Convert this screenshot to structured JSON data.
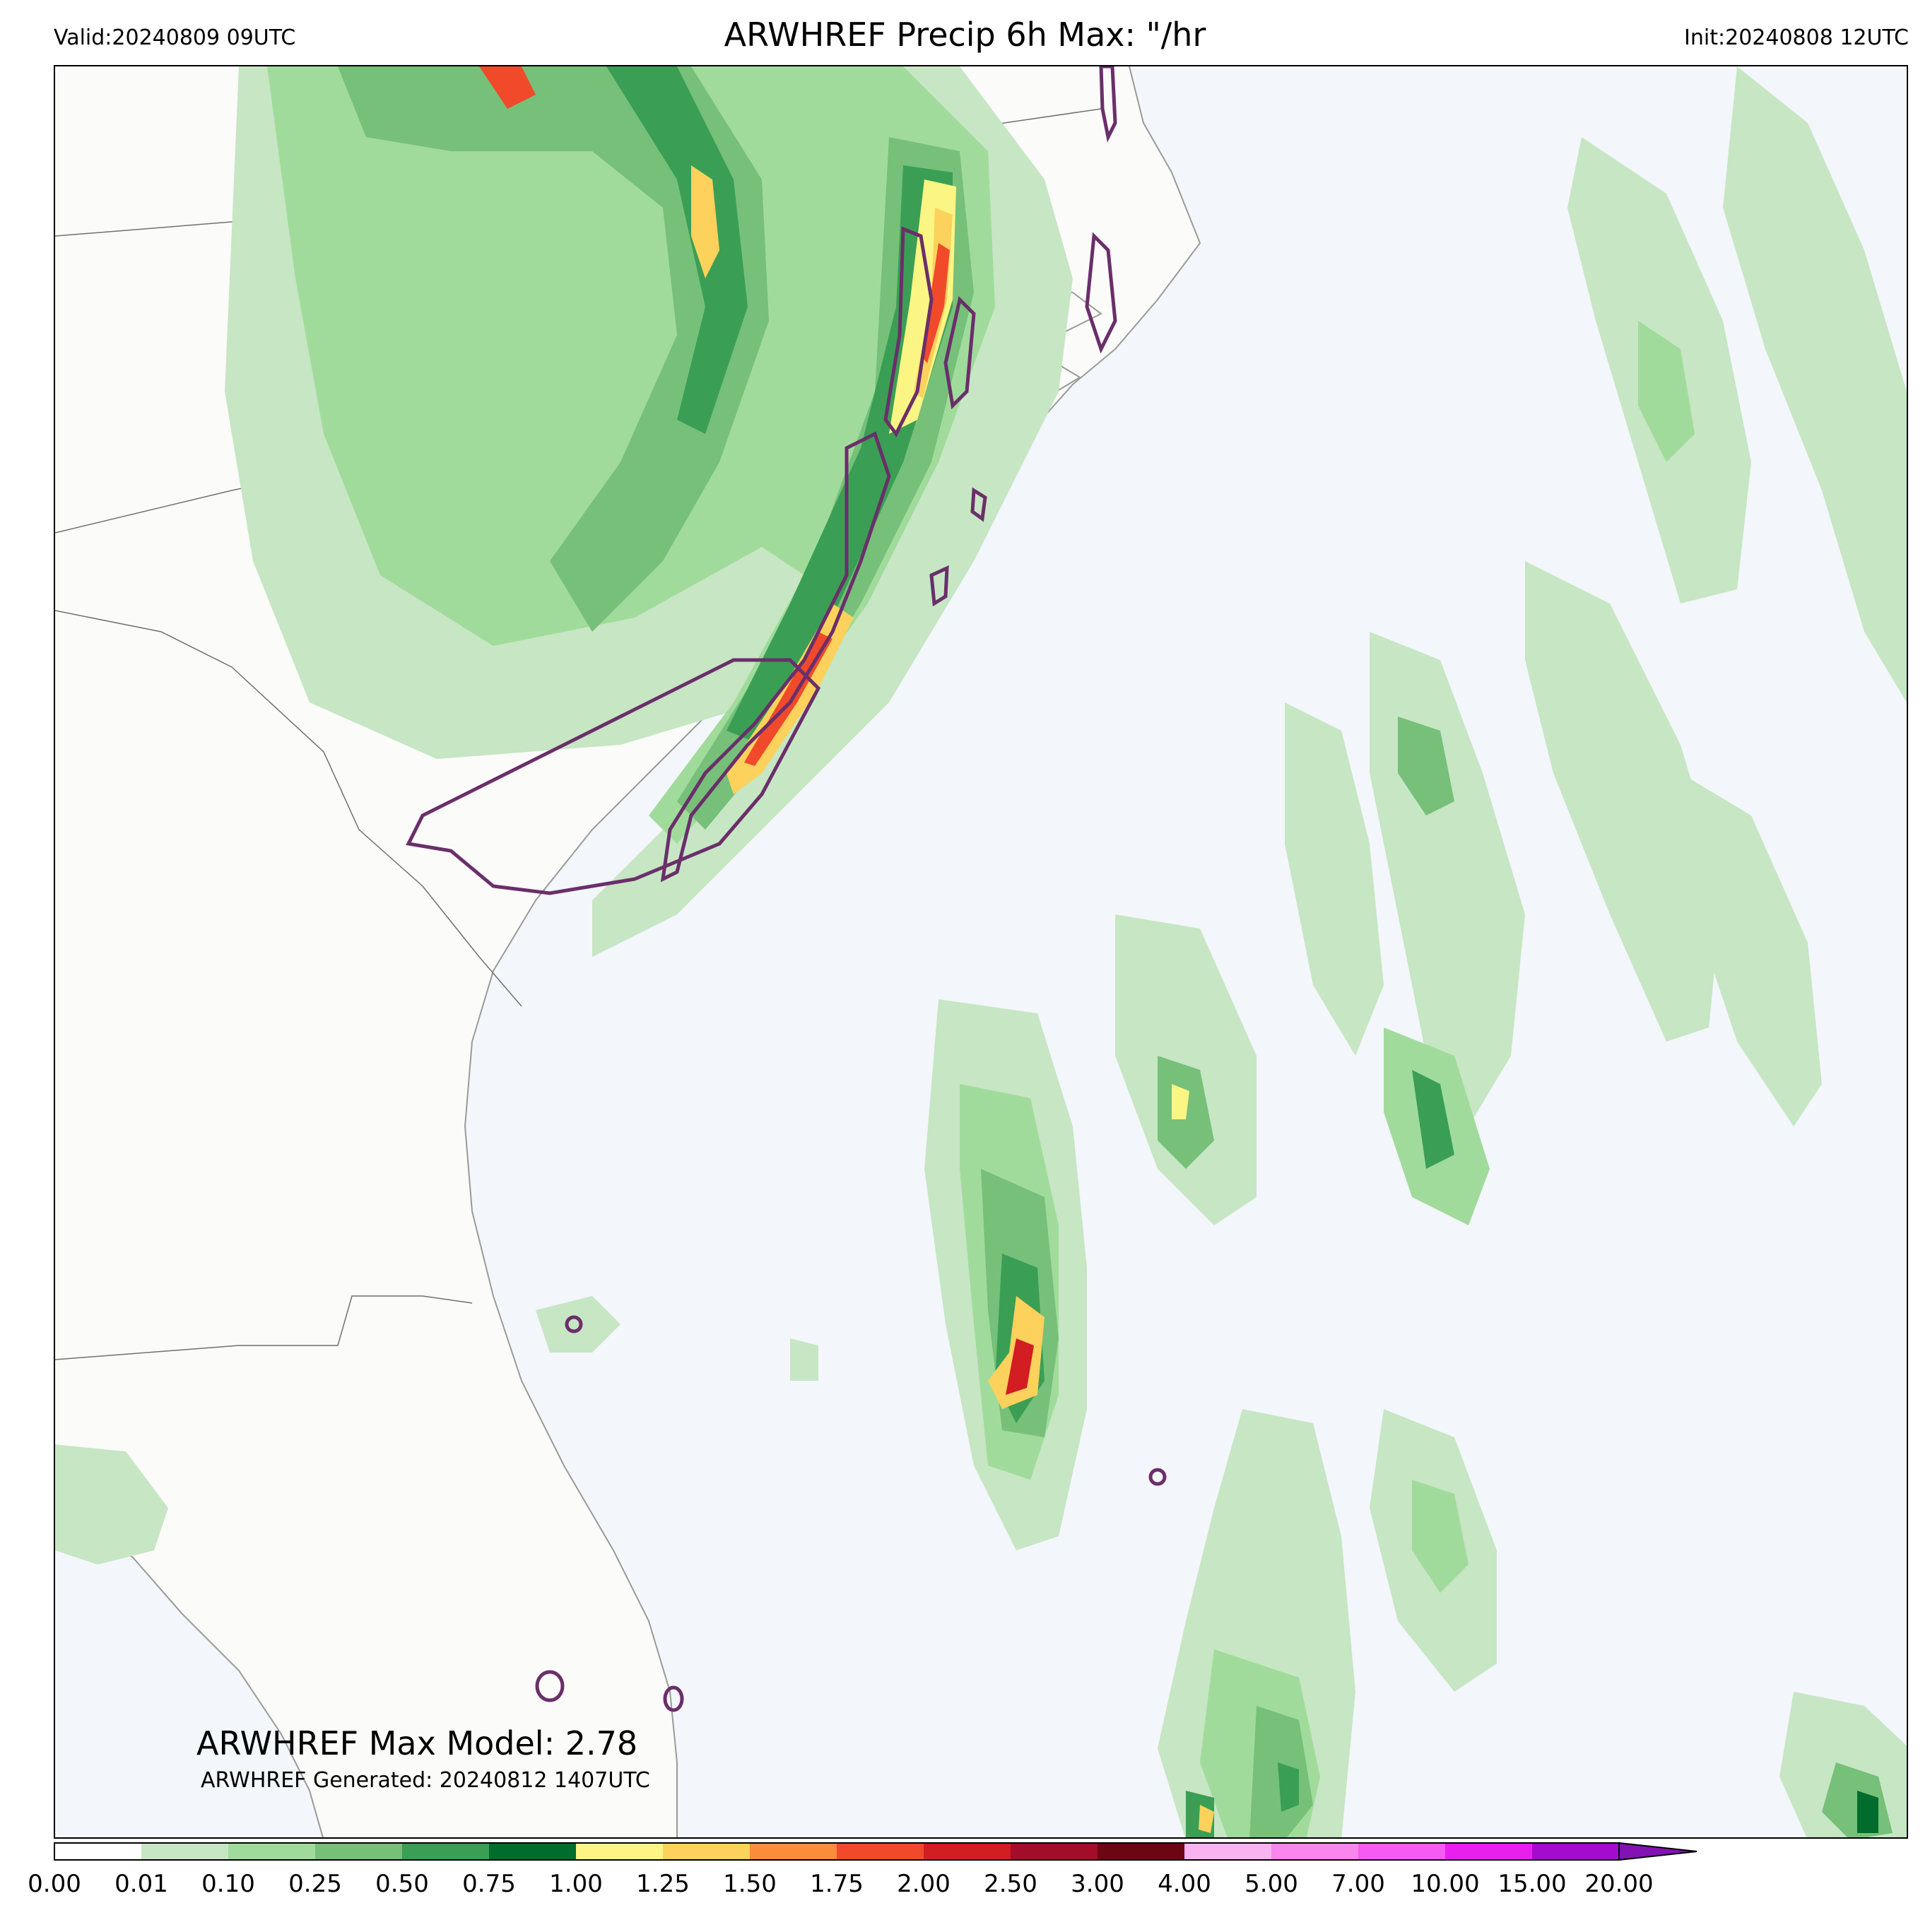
{
  "header": {
    "valid": "Valid:20240809 09UTC",
    "title": "ARWHREF Precip 6h Max: \"/hr",
    "init": "Init:20240808 12UTC"
  },
  "annotations": {
    "max_model": "ARWHREF Max Model: 2.78",
    "generated": "ARWHREF Generated: 20240812 1407UTC"
  },
  "colors": {
    "land": "#fbfbf9",
    "ocean": "#f3f6fb",
    "coast": "#9a9a9a",
    "border": "#707070",
    "contour": "#6a2f6a"
  },
  "colorbar": {
    "ticks": [
      "0.00",
      "0.01",
      "0.10",
      "0.25",
      "0.50",
      "0.75",
      "1.00",
      "1.25",
      "1.50",
      "1.75",
      "2.00",
      "2.50",
      "3.00",
      "4.00",
      "5.00",
      "7.00",
      "10.00",
      "15.00",
      "20.00"
    ],
    "colors": [
      "#ffffff",
      "#c7e6c4",
      "#a1db9b",
      "#76c07a",
      "#3a9f54",
      "#006d2c",
      "#fbf583",
      "#fcd15c",
      "#fb8c3c",
      "#f04a2b",
      "#d21d22",
      "#a30d2c",
      "#6c0514",
      "#f9b3f1",
      "#f985ef",
      "#f55bf0",
      "#e820ee",
      "#a30bce"
    ],
    "extend_color": "#8312b4"
  }
}
